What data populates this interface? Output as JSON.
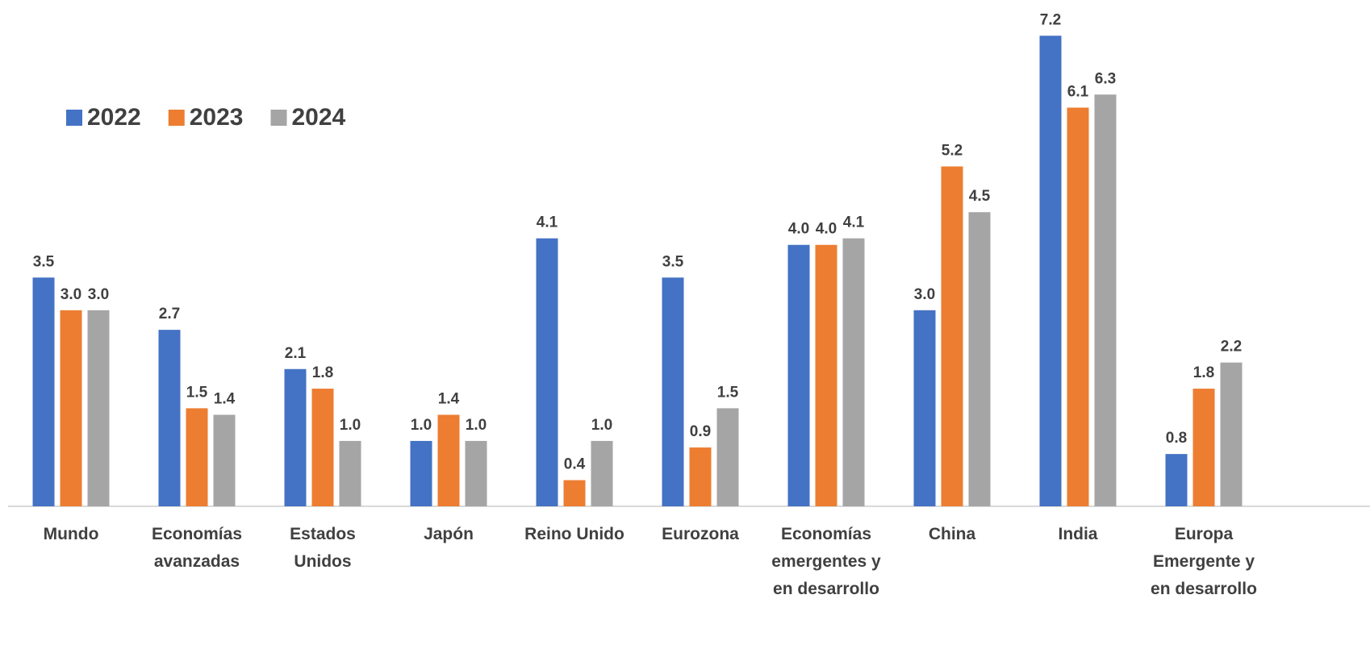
{
  "chart_data": {
    "type": "bar",
    "categories": [
      "Mundo",
      "Economías avanzadas",
      "Estados Unidos",
      "Japón",
      "Reino Unido",
      "Eurozona",
      "Economías emergentes y en desarrollo",
      "China",
      "India",
      "Europa Emergente y en desarrollo"
    ],
    "series": [
      {
        "name": "2022",
        "color": "#4472c4",
        "values": [
          3.5,
          2.7,
          2.1,
          1.0,
          4.1,
          3.5,
          4.0,
          3.0,
          7.2,
          0.8
        ],
        "value_labels": [
          "3.5",
          "2.7",
          "2.1",
          "1.0",
          "4.1",
          "3.5",
          "4.0",
          "3.0",
          "7.2",
          "0.8"
        ]
      },
      {
        "name": "2023",
        "color": "#ed7d31",
        "values": [
          3.0,
          1.5,
          1.8,
          1.4,
          0.4,
          0.9,
          4.0,
          5.2,
          6.1,
          1.8
        ],
        "value_labels": [
          "3.0",
          "1.5",
          "1.8",
          "1.4",
          "0.4",
          "0.9",
          "4.0",
          "5.2",
          "6.1",
          "1.8"
        ]
      },
      {
        "name": "2024",
        "color": "#a5a5a5",
        "values": [
          3.0,
          1.4,
          1.0,
          1.0,
          1.0,
          1.5,
          4.1,
          4.5,
          6.3,
          2.2
        ],
        "value_labels": [
          "3.0",
          "1.4",
          "1.0",
          "1.0",
          "1.0",
          "1.5",
          "4.1",
          "4.5",
          "6.3",
          "2.2"
        ]
      }
    ],
    "ylim": [
      0,
      7.5
    ],
    "legend": "top-left"
  }
}
